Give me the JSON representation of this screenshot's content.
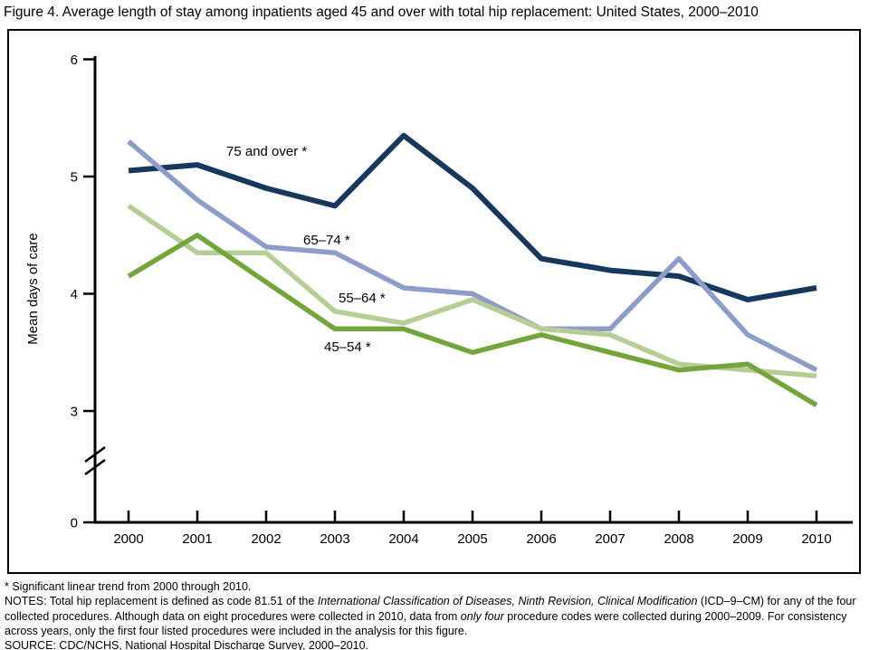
{
  "figure": {
    "title": "Figure 4. Average length of stay among inpatients aged 45 and over with total hip replacement: United States, 2000–2010"
  },
  "chart_data": {
    "type": "line",
    "title": "Figure 4. Average length of stay among inpatients aged 45 and over with total hip replacement: United States, 2000–2010",
    "xlabel": "",
    "ylabel": "Mean days of care",
    "x": [
      2000,
      2001,
      2002,
      2003,
      2004,
      2005,
      2006,
      2007,
      2008,
      2009,
      2010
    ],
    "x_tick_labels": [
      "2000",
      "2001",
      "2002",
      "2003",
      "2004",
      "2005",
      "2006",
      "2007",
      "2008",
      "2009",
      "2010"
    ],
    "y_ticks": [
      0,
      3,
      4,
      5,
      6
    ],
    "ylim": [
      0,
      6
    ],
    "axis_break_between": [
      0,
      3
    ],
    "grid": false,
    "legend_position": "inline-labels-on-lines",
    "series": [
      {
        "name": "75 and over",
        "label": "75 and over *",
        "color": "#17375e",
        "values": [
          5.05,
          5.1,
          4.9,
          4.75,
          5.35,
          4.9,
          4.3,
          4.2,
          4.15,
          3.95,
          4.05
        ]
      },
      {
        "name": "65–74",
        "label": "65–74 *",
        "color": "#8d9cc8",
        "values": [
          5.3,
          4.8,
          4.4,
          4.35,
          4.05,
          4.0,
          3.7,
          3.7,
          4.3,
          3.65,
          3.35
        ]
      },
      {
        "name": "55–64",
        "label": "55–64 *",
        "color": "#b7cd96",
        "values": [
          4.75,
          4.35,
          4.35,
          3.85,
          3.75,
          3.95,
          3.7,
          3.65,
          3.4,
          3.35,
          3.3
        ]
      },
      {
        "name": "45–54",
        "label": "45–54 *",
        "color": "#74a53c",
        "values": [
          4.15,
          4.5,
          4.1,
          3.7,
          3.7,
          3.5,
          3.65,
          3.5,
          3.35,
          3.4,
          3.05
        ]
      }
    ]
  },
  "footnotes": {
    "asterisk_note": [
      {
        "t": "* Significant linear trend from 2000 through 2010.",
        "i": false
      }
    ],
    "notes": [
      {
        "t": "NOTES: Total hip replacement is defined as code 81.51 of the ",
        "i": false
      },
      {
        "t": "International Classification of Diseases, Ninth Revision, Clinical Modification",
        "i": true
      },
      {
        "t": " (ICD–9–CM) for any of the four collected procedures. Although data on eight procedures were collected in 2010, data from ",
        "i": false
      },
      {
        "t": "only four",
        "i": true
      },
      {
        "t": " procedure codes were collected during 2000–2009. For consistency across years, only the first four listed procedures were included in the analysis for this figure.",
        "i": false
      }
    ],
    "source": [
      {
        "t": "SOURCE: CDC/NCHS, National Hospital Discharge Survey, 2000–2010.",
        "i": false
      }
    ]
  }
}
